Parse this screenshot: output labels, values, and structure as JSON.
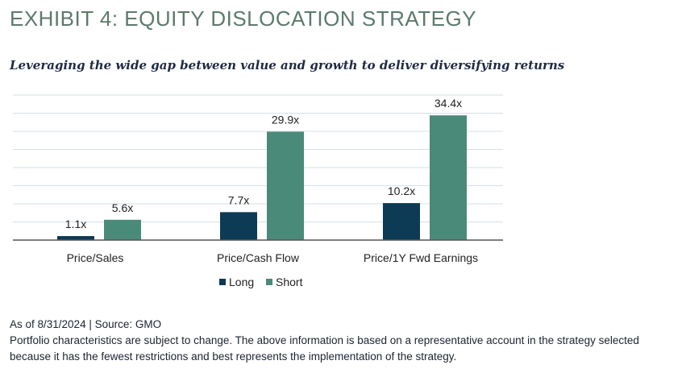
{
  "exhibit": {
    "title": "EXHIBIT 4: EQUITY DISLOCATION STRATEGY",
    "subtitle": "Leveraging the wide gap between value and growth to deliver diversifying returns"
  },
  "chart_data": {
    "type": "bar",
    "categories": [
      "Price/Sales",
      "Price/Cash Flow",
      "Price/1Y Fwd Earnings"
    ],
    "series": [
      {
        "name": "Long",
        "values": [
          1.1,
          7.7,
          10.2
        ],
        "labels": [
          "1.1x",
          "7.7x",
          "10.2x"
        ],
        "color": "#0d3a55"
      },
      {
        "name": "Short",
        "values": [
          5.6,
          29.9,
          34.4
        ],
        "labels": [
          "5.6x",
          "29.9x",
          "34.4x"
        ],
        "color": "#4a8a78"
      }
    ],
    "ylim": [
      0,
      40
    ],
    "grid": true,
    "legend_position": "bottom-center"
  },
  "footer": {
    "source": "As of 8/31/2024 | Source: GMO",
    "note_line1": "Portfolio characteristics are subject to change. The above information is based on a representative account in the strategy selected",
    "note_line2": "because it has the fewest restrictions and best represents the implementation of the strategy."
  },
  "colors": {
    "title": "#5c7a6c",
    "subtitle": "#1f2a44",
    "gridline": "#d6dfe6",
    "axis": "#555555"
  }
}
